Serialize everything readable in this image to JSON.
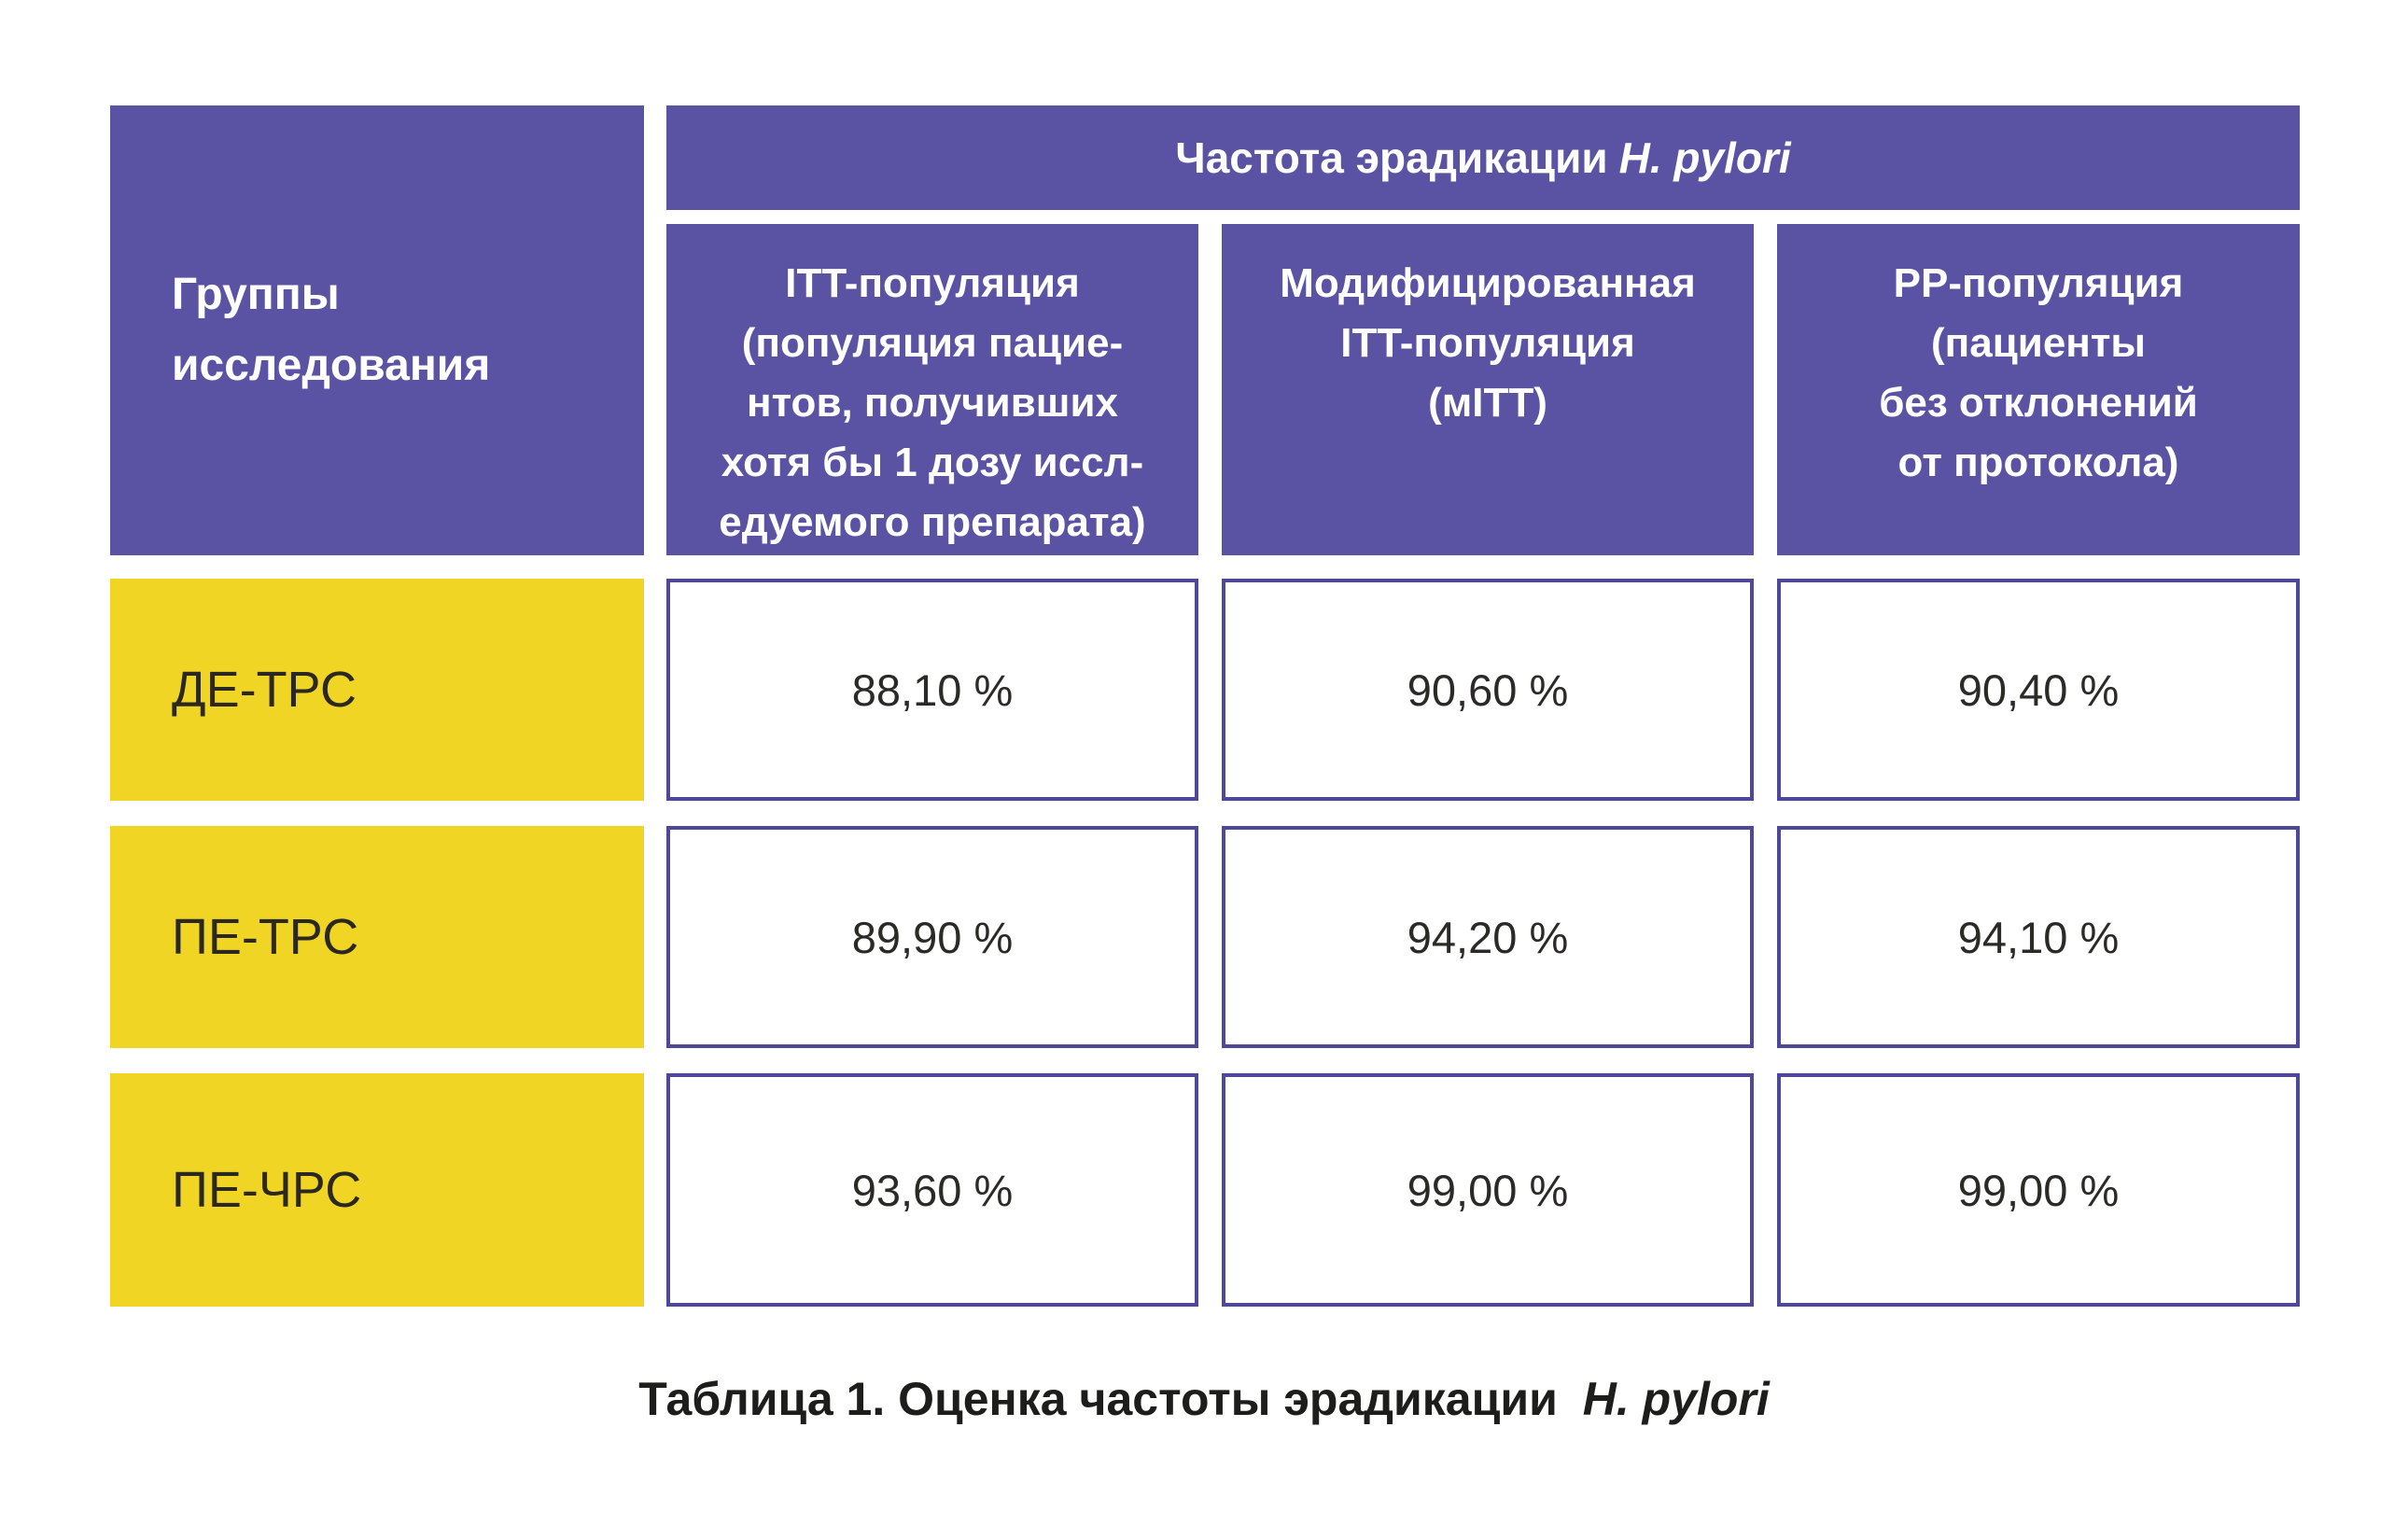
{
  "colors": {
    "purple": "#5a52a3",
    "purple_border": "#4f4898",
    "yellow": "#f0d525",
    "text_on_yellow": "#2a2820",
    "text_values": "#2b2a26",
    "text_white": "#ffffff"
  },
  "table": {
    "corner_header": "Группы\nисследования",
    "banner": {
      "text": "Частота эрадикации",
      "italic": "H. pylori"
    },
    "column_headers": [
      "ITT-популяция\n(популяция пацие-\nнтов, получивших\nхотя бы 1 дозу иссл-\nедуемого препарата)",
      "Модифицированная\nITT-популяция\n(мITT)",
      "PP-популяция\n(пациенты\nбез отклонений\nот протокола)"
    ],
    "rows": [
      {
        "label": "ДЕ-ТРС",
        "values": [
          "88,10 %",
          "90,60 %",
          "90,40 %"
        ]
      },
      {
        "label": "ПЕ-ТРС",
        "values": [
          "89,90 %",
          "94,20 %",
          "94,10 %"
        ]
      },
      {
        "label": "ПЕ-ЧРС",
        "values": [
          "93,60 %",
          "99,00 %",
          "99,00 %"
        ]
      }
    ]
  },
  "caption": {
    "text": "Таблица 1. Оценка частоты эрадикации",
    "italic": "H. pylori"
  },
  "chart_data": {
    "type": "table",
    "title": "Таблица 1. Оценка частоты эрадикации H. pylori",
    "row_header": "Группы исследования",
    "column_group_header": "Частота эрадикации H. pylori",
    "columns": [
      "ITT-популяция (популяция пациентов, получивших хотя бы 1 дозу исследуемого препарата)",
      "Модифицированная ITT-популяция (мITT)",
      "PP-популяция (пациенты без отклонений от протокола)"
    ],
    "rows": [
      "ДЕ-ТРС",
      "ПЕ-ТРС",
      "ПЕ-ЧРС"
    ],
    "values_percent": [
      [
        88.1,
        90.6,
        90.4
      ],
      [
        89.9,
        94.2,
        94.1
      ],
      [
        93.6,
        99.0,
        99.0
      ]
    ]
  }
}
